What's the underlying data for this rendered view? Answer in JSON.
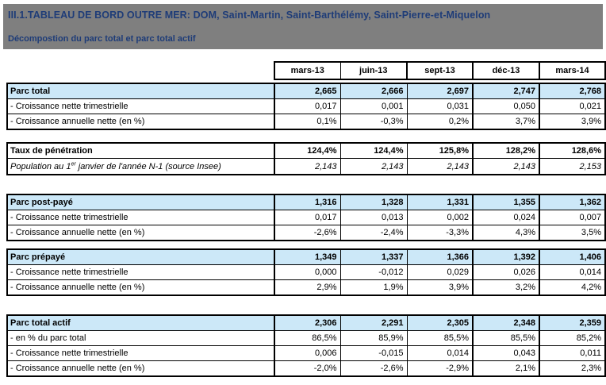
{
  "banner": {
    "title": "III.1.TABLEAU DE BORD OUTRE MER: DOM, Saint-Martin, Saint-Barthélémy, Saint-Pierre-et-Miquelon",
    "subtitle": "Décompostion du parc total et parc total actif"
  },
  "columns": [
    "mars-13",
    "juin-13",
    "sept-13",
    "déc-13",
    "mars-14"
  ],
  "colors": {
    "banner_bg": "#7f7f7f",
    "banner_text": "#1e3c78",
    "section_row_bg": "#cce8f8",
    "border": "#000000"
  },
  "blocks": [
    {
      "name": "parc-total",
      "rows": [
        {
          "label": "Parc total",
          "type": "section",
          "values": [
            "2,665",
            "2,666",
            "2,697",
            "2,747",
            "2,768"
          ]
        },
        {
          "label": "- Croissance nette trimestrielle",
          "type": "sub",
          "values": [
            "0,017",
            "0,001",
            "0,031",
            "0,050",
            "0,021"
          ]
        },
        {
          "label": "- Croissance annuelle nette (en %)",
          "type": "sub",
          "values": [
            "0,1%",
            "-0,3%",
            "0,2%",
            "3,7%",
            "3,9%"
          ]
        }
      ]
    },
    {
      "name": "taux-de-penetration",
      "rows": [
        {
          "label": "Taux de pénétration",
          "type": "bold",
          "values": [
            "124,4%",
            "124,4%",
            "125,8%",
            "128,2%",
            "128,6%"
          ]
        },
        {
          "label_parts": {
            "prefix": "Population au 1",
            "sup": "er",
            "suffix": " janvier de l'année N-1 (source Insee)"
          },
          "type": "italic",
          "values": [
            "2,143",
            "2,143",
            "2,143",
            "2,143",
            "2,153"
          ]
        }
      ]
    },
    {
      "name": "parc-post-paye",
      "rows": [
        {
          "label": "Parc post-payé",
          "type": "section",
          "values": [
            "1,316",
            "1,328",
            "1,331",
            "1,355",
            "1,362"
          ]
        },
        {
          "label": "- Croissance nette trimestrielle",
          "type": "sub",
          "values": [
            "0,017",
            "0,013",
            "0,002",
            "0,024",
            "0,007"
          ]
        },
        {
          "label": "- Croissance annuelle nette (en %)",
          "type": "sub",
          "values": [
            "-2,6%",
            "-2,4%",
            "-3,3%",
            "4,3%",
            "3,5%"
          ]
        }
      ]
    },
    {
      "name": "parc-prepaye",
      "rows": [
        {
          "label": "Parc prépayé",
          "type": "section",
          "values": [
            "1,349",
            "1,337",
            "1,366",
            "1,392",
            "1,406"
          ]
        },
        {
          "label": "- Croissance nette trimestrielle",
          "type": "sub",
          "values": [
            "0,000",
            "-0,012",
            "0,029",
            "0,026",
            "0,014"
          ]
        },
        {
          "label": "- Croissance annuelle nette (en %)",
          "type": "sub",
          "values": [
            "2,9%",
            "1,9%",
            "3,9%",
            "3,2%",
            "4,2%"
          ]
        }
      ]
    },
    {
      "name": "parc-total-actif",
      "rows": [
        {
          "label": "Parc total actif",
          "type": "section",
          "values": [
            "2,306",
            "2,291",
            "2,305",
            "2,348",
            "2,359"
          ]
        },
        {
          "label": "- en % du parc total",
          "type": "sub",
          "values": [
            "86,5%",
            "85,9%",
            "85,5%",
            "85,5%",
            "85,2%"
          ]
        },
        {
          "label": "- Croissance nette trimestrielle",
          "type": "sub",
          "values": [
            "0,006",
            "-0,015",
            "0,014",
            "0,043",
            "0,011"
          ]
        },
        {
          "label": "- Croissance annuelle nette (en %)",
          "type": "sub",
          "values": [
            "-2,0%",
            "-2,6%",
            "-2,9%",
            "2,1%",
            "2,3%"
          ]
        }
      ]
    }
  ]
}
